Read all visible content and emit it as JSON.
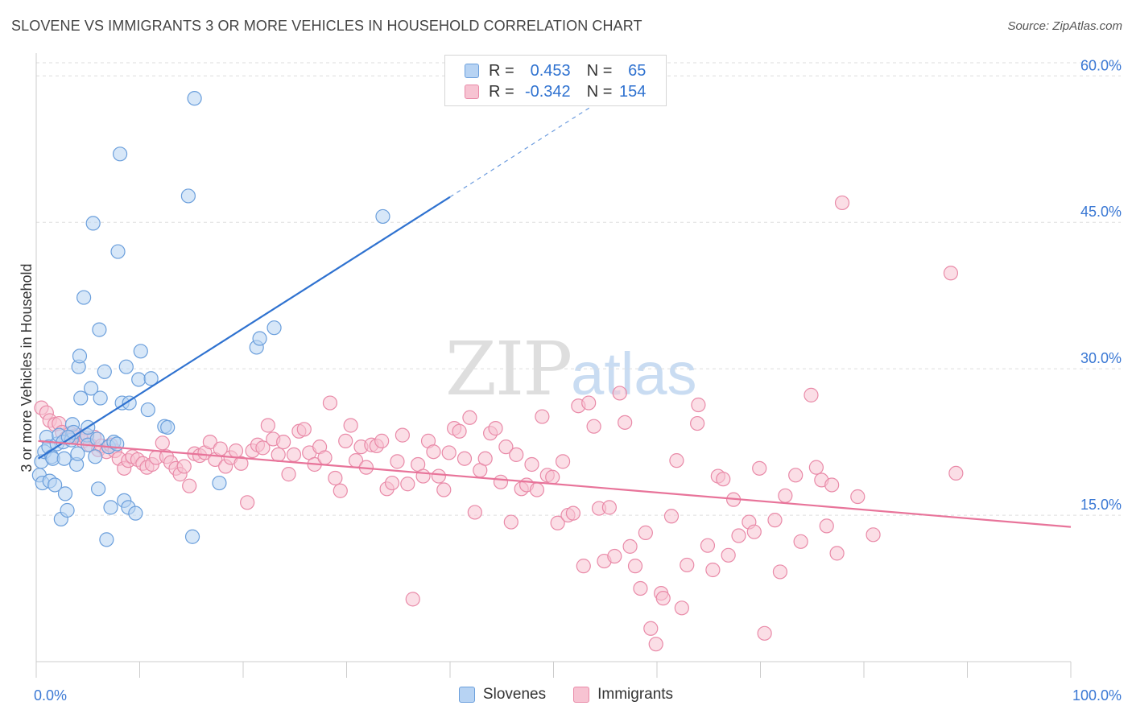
{
  "title": "SLOVENE VS IMMIGRANTS 3 OR MORE VEHICLES IN HOUSEHOLD CORRELATION CHART",
  "source": "Source: ZipAtlas.com",
  "watermark": {
    "zip": "ZIP",
    "atlas": "atlas"
  },
  "legend": {
    "r_label": "R =",
    "n_label": "N =",
    "rows": [
      {
        "r": "0.453",
        "n": "65"
      },
      {
        "r": "-0.342",
        "n": "154"
      }
    ]
  },
  "colors": {
    "slovenes_fill": "#b7d3f3",
    "slovenes_stroke": "#6b9fdc",
    "slovenes_line": "#2f72d0",
    "immigrants_fill": "#f7c3d2",
    "immigrants_stroke": "#e98aa8",
    "immigrants_line": "#e8749a",
    "tick_label": "#3a78d4",
    "grid": "#dddddd"
  },
  "chart_data": {
    "type": "scatter",
    "title": "SLOVENE VS IMMIGRANTS 3 OR MORE VEHICLES IN HOUSEHOLD CORRELATION CHART",
    "xlabel": "",
    "ylabel": "3 or more Vehicles in Household",
    "xlim": [
      0,
      100
    ],
    "ylim": [
      0,
      62
    ],
    "x_tick_labels": [
      "0.0%",
      "100.0%"
    ],
    "y_ticks": [
      15,
      30,
      45,
      60
    ],
    "y_tick_labels": [
      "15.0%",
      "30.0%",
      "45.0%",
      "60.0%"
    ],
    "grid": true,
    "legend_position": "top-center",
    "series": [
      {
        "name": "Slovenes",
        "r": 0.453,
        "n": 65,
        "trend": {
          "x0": 0.2,
          "y0": 20.8,
          "x1": 40,
          "y1": 47.6,
          "x_dash_end": 58,
          "y_dash_end": 59.8
        },
        "points": [
          [
            0.3,
            19.1
          ],
          [
            0.5,
            20.5
          ],
          [
            0.6,
            18.3
          ],
          [
            0.8,
            21.5
          ],
          [
            1.0,
            23.0
          ],
          [
            1.2,
            22.0
          ],
          [
            1.3,
            18.5
          ],
          [
            1.5,
            21.0
          ],
          [
            1.6,
            20.8
          ],
          [
            1.8,
            18.1
          ],
          [
            2.0,
            22.3
          ],
          [
            2.2,
            23.2
          ],
          [
            2.4,
            14.6
          ],
          [
            2.6,
            22.5
          ],
          [
            2.7,
            20.8
          ],
          [
            2.8,
            17.2
          ],
          [
            3.0,
            15.5
          ],
          [
            3.4,
            22.7
          ],
          [
            3.5,
            24.3
          ],
          [
            3.6,
            23.5
          ],
          [
            3.9,
            20.2
          ],
          [
            4.0,
            21.3
          ],
          [
            4.1,
            30.2
          ],
          [
            4.2,
            31.3
          ],
          [
            4.3,
            27.0
          ],
          [
            4.6,
            37.3
          ],
          [
            4.9,
            23.2
          ],
          [
            5.0,
            24.0
          ],
          [
            5.0,
            22.2
          ],
          [
            5.3,
            28.0
          ],
          [
            5.5,
            44.9
          ],
          [
            5.7,
            21.0
          ],
          [
            5.9,
            22.8
          ],
          [
            6.0,
            17.7
          ],
          [
            6.1,
            34.0
          ],
          [
            6.2,
            27.0
          ],
          [
            6.6,
            29.7
          ],
          [
            6.8,
            12.5
          ],
          [
            7.0,
            22.0
          ],
          [
            7.2,
            15.8
          ],
          [
            7.5,
            22.5
          ],
          [
            7.8,
            22.3
          ],
          [
            7.9,
            42.0
          ],
          [
            8.1,
            52.0
          ],
          [
            8.3,
            26.5
          ],
          [
            8.5,
            16.5
          ],
          [
            8.7,
            30.2
          ],
          [
            8.9,
            15.8
          ],
          [
            9.0,
            26.5
          ],
          [
            9.6,
            15.2
          ],
          [
            9.9,
            28.9
          ],
          [
            10.1,
            31.8
          ],
          [
            10.8,
            25.8
          ],
          [
            11.1,
            29.0
          ],
          [
            12.4,
            24.1
          ],
          [
            12.7,
            24.0
          ],
          [
            14.7,
            47.7
          ],
          [
            15.1,
            12.8
          ],
          [
            15.3,
            57.7
          ],
          [
            17.7,
            18.3
          ],
          [
            21.3,
            32.2
          ],
          [
            21.6,
            33.1
          ],
          [
            23.0,
            34.2
          ],
          [
            33.5,
            45.6
          ],
          [
            3.1,
            23.0
          ]
        ]
      },
      {
        "name": "Immigrants",
        "r": -0.342,
        "n": 154,
        "trend": {
          "x0": 0.2,
          "y0": 22.6,
          "x1": 100,
          "y1": 13.8
        },
        "points": [
          [
            0.5,
            26.0
          ],
          [
            1.0,
            25.5
          ],
          [
            1.3,
            24.7
          ],
          [
            1.8,
            24.3
          ],
          [
            2.2,
            24.4
          ],
          [
            2.5,
            23.5
          ],
          [
            2.9,
            22.9
          ],
          [
            3.3,
            23.4
          ],
          [
            3.7,
            23.1
          ],
          [
            4.0,
            23.2
          ],
          [
            4.5,
            22.6
          ],
          [
            4.8,
            22.9
          ],
          [
            5.2,
            22.2
          ],
          [
            5.6,
            23.0
          ],
          [
            6.0,
            21.7
          ],
          [
            6.3,
            22.1
          ],
          [
            6.8,
            21.5
          ],
          [
            7.2,
            22.2
          ],
          [
            7.6,
            21.6
          ],
          [
            8.0,
            20.8
          ],
          [
            8.5,
            19.8
          ],
          [
            8.9,
            20.6
          ],
          [
            9.3,
            21.0
          ],
          [
            9.8,
            20.7
          ],
          [
            10.3,
            20.3
          ],
          [
            10.7,
            19.9
          ],
          [
            11.2,
            20.2
          ],
          [
            11.6,
            20.9
          ],
          [
            12.2,
            22.4
          ],
          [
            12.6,
            21.0
          ],
          [
            13.0,
            20.4
          ],
          [
            13.5,
            19.8
          ],
          [
            13.9,
            19.2
          ],
          [
            14.3,
            20.0
          ],
          [
            14.8,
            18.0
          ],
          [
            15.3,
            21.3
          ],
          [
            15.8,
            21.1
          ],
          [
            16.3,
            21.4
          ],
          [
            16.8,
            22.5
          ],
          [
            17.3,
            20.7
          ],
          [
            17.8,
            21.8
          ],
          [
            18.3,
            20.0
          ],
          [
            18.8,
            20.9
          ],
          [
            19.3,
            21.6
          ],
          [
            19.8,
            20.3
          ],
          [
            20.4,
            16.3
          ],
          [
            20.9,
            21.6
          ],
          [
            21.4,
            22.2
          ],
          [
            21.9,
            21.9
          ],
          [
            22.4,
            24.2
          ],
          [
            22.9,
            22.8
          ],
          [
            23.4,
            21.2
          ],
          [
            23.9,
            22.5
          ],
          [
            24.4,
            19.2
          ],
          [
            24.9,
            21.2
          ],
          [
            25.4,
            23.6
          ],
          [
            25.9,
            23.8
          ],
          [
            26.4,
            21.4
          ],
          [
            26.9,
            20.2
          ],
          [
            27.4,
            22.0
          ],
          [
            27.9,
            20.9
          ],
          [
            28.4,
            26.5
          ],
          [
            28.9,
            18.8
          ],
          [
            29.4,
            17.5
          ],
          [
            29.9,
            22.6
          ],
          [
            30.4,
            24.2
          ],
          [
            30.9,
            20.6
          ],
          [
            31.4,
            22.0
          ],
          [
            31.9,
            19.9
          ],
          [
            32.4,
            22.2
          ],
          [
            32.9,
            22.1
          ],
          [
            33.4,
            22.6
          ],
          [
            33.9,
            17.7
          ],
          [
            34.4,
            18.3
          ],
          [
            34.9,
            20.5
          ],
          [
            35.4,
            23.2
          ],
          [
            35.9,
            18.2
          ],
          [
            36.4,
            6.4
          ],
          [
            36.9,
            20.2
          ],
          [
            37.4,
            19.0
          ],
          [
            37.9,
            22.6
          ],
          [
            38.4,
            21.5
          ],
          [
            38.9,
            19.0
          ],
          [
            39.4,
            17.6
          ],
          [
            39.9,
            21.4
          ],
          [
            40.4,
            23.9
          ],
          [
            40.9,
            23.6
          ],
          [
            41.4,
            20.8
          ],
          [
            41.9,
            25.0
          ],
          [
            42.4,
            15.3
          ],
          [
            42.9,
            19.6
          ],
          [
            43.4,
            20.8
          ],
          [
            43.9,
            23.4
          ],
          [
            44.4,
            23.9
          ],
          [
            44.9,
            18.4
          ],
          [
            45.4,
            22.0
          ],
          [
            45.9,
            14.3
          ],
          [
            46.4,
            21.2
          ],
          [
            46.9,
            17.7
          ],
          [
            47.4,
            18.1
          ],
          [
            47.9,
            20.2
          ],
          [
            48.4,
            17.6
          ],
          [
            48.9,
            25.1
          ],
          [
            49.4,
            19.1
          ],
          [
            49.9,
            18.9
          ],
          [
            50.4,
            14.2
          ],
          [
            50.9,
            20.5
          ],
          [
            51.4,
            15.0
          ],
          [
            51.9,
            15.2
          ],
          [
            52.4,
            26.2
          ],
          [
            52.9,
            9.8
          ],
          [
            53.4,
            26.5
          ],
          [
            53.9,
            24.1
          ],
          [
            54.4,
            15.7
          ],
          [
            54.9,
            10.3
          ],
          [
            55.4,
            15.8
          ],
          [
            55.9,
            10.8
          ],
          [
            56.4,
            27.5
          ],
          [
            56.9,
            24.5
          ],
          [
            57.4,
            11.8
          ],
          [
            57.9,
            9.8
          ],
          [
            58.4,
            7.5
          ],
          [
            58.9,
            13.2
          ],
          [
            59.4,
            3.4
          ],
          [
            59.9,
            1.8
          ],
          [
            60.4,
            7.0
          ],
          [
            60.6,
            6.5
          ],
          [
            61.4,
            14.9
          ],
          [
            61.9,
            20.6
          ],
          [
            62.4,
            5.5
          ],
          [
            62.9,
            9.9
          ],
          [
            63.9,
            24.4
          ],
          [
            64.0,
            26.3
          ],
          [
            64.9,
            11.9
          ],
          [
            65.4,
            9.4
          ],
          [
            65.9,
            19.0
          ],
          [
            66.4,
            18.7
          ],
          [
            66.9,
            10.9
          ],
          [
            67.4,
            16.6
          ],
          [
            67.9,
            12.9
          ],
          [
            68.9,
            14.3
          ],
          [
            69.4,
            13.3
          ],
          [
            69.9,
            19.8
          ],
          [
            70.4,
            2.9
          ],
          [
            71.4,
            14.5
          ],
          [
            71.9,
            9.2
          ],
          [
            72.4,
            17.0
          ],
          [
            73.4,
            19.1
          ],
          [
            73.9,
            12.3
          ],
          [
            74.9,
            27.3
          ],
          [
            75.4,
            19.9
          ],
          [
            75.9,
            18.6
          ],
          [
            76.4,
            13.9
          ],
          [
            76.9,
            18.1
          ],
          [
            77.4,
            11.1
          ],
          [
            77.9,
            47.0
          ],
          [
            79.4,
            16.9
          ],
          [
            80.9,
            13.0
          ],
          [
            88.4,
            39.8
          ],
          [
            88.9,
            19.3
          ]
        ]
      }
    ]
  }
}
